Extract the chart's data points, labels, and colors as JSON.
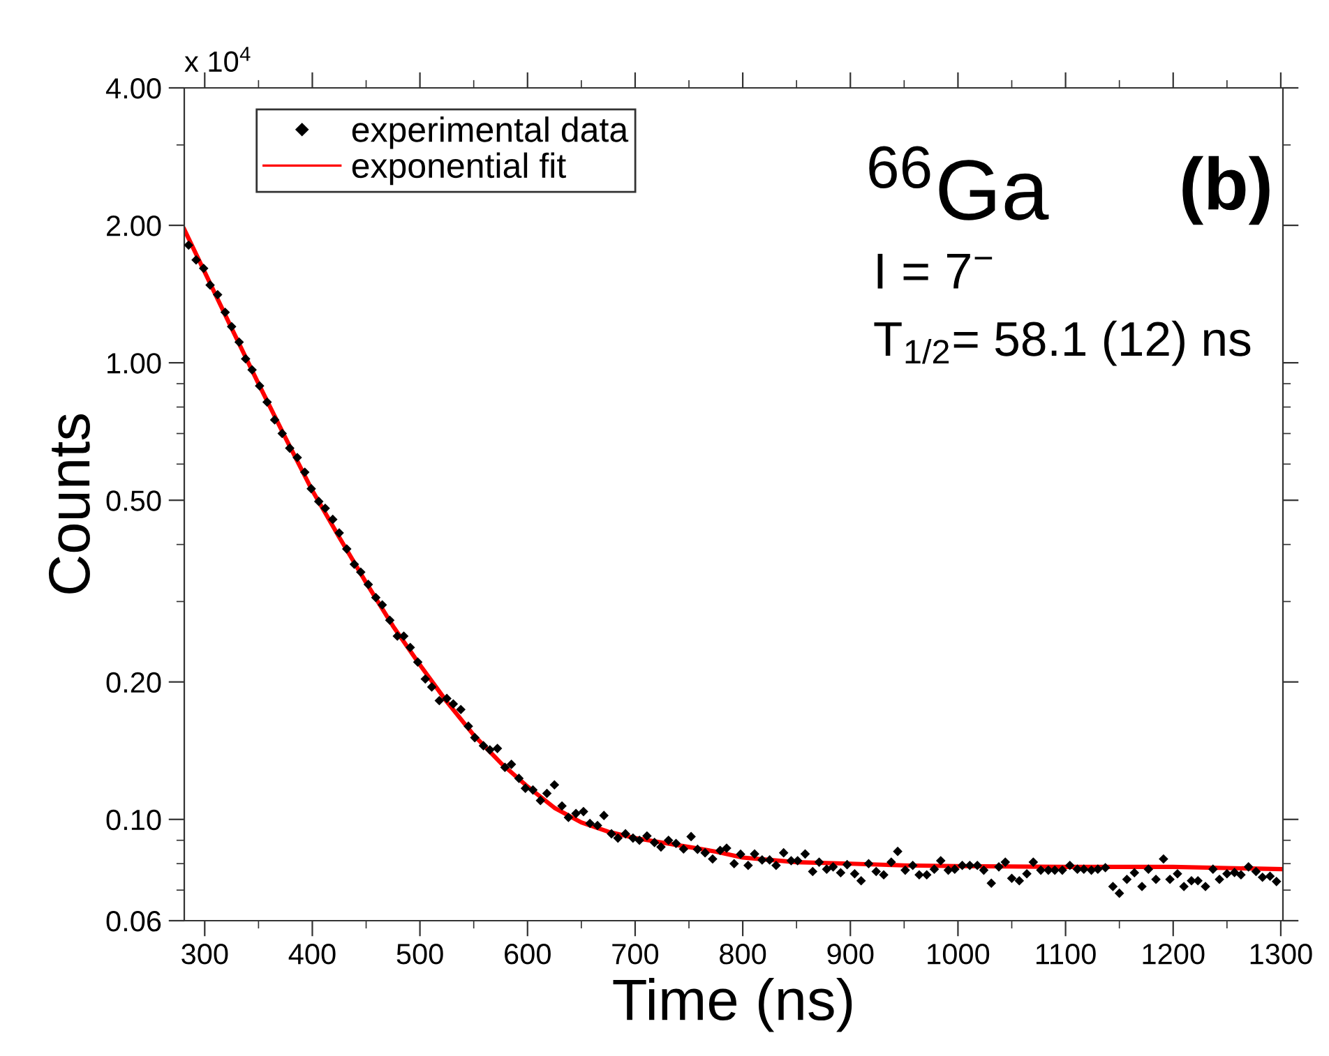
{
  "chart_data": {
    "type": "scatter",
    "xlabel": "Time (ns)",
    "ylabel": "Counts",
    "annotations": [
      "x 10$^{4}$",
      "$^{66}$Ga",
      "(b)",
      "I = 7$^{−}$",
      "T$_{1/2}$= 58.1 (12) ns"
    ],
    "log": "y",
    "xlim": [
      281,
      1302
    ],
    "ylim": [
      0.06,
      4.0
    ],
    "xticks": [
      300,
      {
        "value": 350,
        "label": null
      },
      400,
      {
        "value": 450,
        "label": null
      },
      500,
      {
        "value": 550,
        "label": null
      },
      600,
      {
        "value": 650,
        "label": null
      },
      700,
      {
        "value": 750,
        "label": null
      },
      800,
      {
        "value": 850,
        "label": null
      },
      900,
      {
        "value": 950,
        "label": null
      },
      1000,
      {
        "value": 1050,
        "label": null
      },
      1100,
      {
        "value": 1150,
        "label": null
      },
      1200,
      {
        "value": 1250,
        "label": null
      },
      1300
    ],
    "yticks": [
      {
        "value": 0.06,
        "label": "0.06"
      },
      {
        "value": 0.07,
        "label": null
      },
      {
        "value": 0.08,
        "label": null
      },
      {
        "value": 0.09,
        "label": null
      },
      {
        "value": 0.1,
        "label": "0.10"
      },
      {
        "value": 0.2,
        "label": "0.20"
      },
      {
        "value": 0.3,
        "label": null
      },
      {
        "value": 0.4,
        "label": null
      },
      {
        "value": 0.5,
        "label": "0.50"
      },
      {
        "value": 0.6,
        "label": null
      },
      {
        "value": 0.7,
        "label": null
      },
      {
        "value": 0.8,
        "label": null
      },
      {
        "value": 0.9,
        "label": null
      },
      {
        "value": 1.0,
        "label": "1.00"
      },
      {
        "value": 2.0,
        "label": "2.00"
      },
      {
        "value": 3.0,
        "label": null
      },
      {
        "value": 4.0,
        "label": "4.00"
      }
    ],
    "grid": false,
    "legend": "top left",
    "series": [
      {
        "name": "experimental data",
        "color": "#000000",
        "marker": "diamond",
        "x": [
          285,
          292,
          299,
          305,
          312,
          319,
          325,
          332,
          338,
          344,
          351,
          358,
          365,
          372,
          379,
          386,
          393,
          399,
          406,
          412,
          419,
          425,
          432,
          439,
          445,
          452,
          459,
          465,
          472,
          479,
          485,
          491,
          498,
          505,
          511,
          518,
          525,
          531,
          538,
          545,
          551,
          559,
          565,
          572,
          579,
          585,
          592,
          598,
          605,
          612,
          618,
          625,
          632,
          638,
          645,
          652,
          658,
          665,
          671,
          678,
          684,
          691,
          698,
          704,
          711,
          718,
          724,
          731,
          738,
          745,
          752,
          758,
          765,
          772,
          779,
          785,
          792,
          798,
          805,
          811,
          818,
          825,
          831,
          838,
          845,
          851,
          858,
          865,
          871,
          878,
          884,
          891,
          897,
          904,
          910,
          917,
          924,
          931,
          938,
          944,
          951,
          958,
          964,
          971,
          978,
          984,
          991,
          997,
          1004,
          1011,
          1018,
          1024,
          1031,
          1038,
          1044,
          1050,
          1057,
          1064,
          1070,
          1077,
          1084,
          1090,
          1097,
          1104,
          1111,
          1117,
          1124,
          1130,
          1137,
          1144,
          1150,
          1157,
          1164,
          1171,
          1177,
          1184,
          1191,
          1197,
          1204,
          1210,
          1217,
          1223,
          1230,
          1237,
          1243,
          1250,
          1257,
          1263,
          1270,
          1277,
          1283,
          1290,
          1296
        ],
        "values": [
          1.81,
          1.68,
          1.61,
          1.48,
          1.41,
          1.29,
          1.2,
          1.11,
          1.02,
          0.965,
          0.89,
          0.82,
          0.75,
          0.7,
          0.65,
          0.62,
          0.576,
          0.53,
          0.497,
          0.48,
          0.454,
          0.424,
          0.391,
          0.362,
          0.348,
          0.327,
          0.306,
          0.295,
          0.273,
          0.252,
          0.252,
          0.238,
          0.221,
          0.203,
          0.195,
          0.182,
          0.184,
          0.179,
          0.174,
          0.16,
          0.151,
          0.145,
          0.142,
          0.143,
          0.13,
          0.132,
          0.123,
          0.117,
          0.116,
          0.11,
          0.114,
          0.119,
          0.107,
          0.101,
          0.103,
          0.104,
          0.098,
          0.097,
          0.102,
          0.093,
          0.091,
          0.093,
          0.091,
          0.09,
          0.092,
          0.089,
          0.087,
          0.09,
          0.0886,
          0.0861,
          0.0917,
          0.086,
          0.0845,
          0.0819,
          0.0855,
          0.0865,
          0.08,
          0.0839,
          0.0793,
          0.084,
          0.0815,
          0.0815,
          0.0793,
          0.0845,
          0.0812,
          0.0812,
          0.084,
          0.0769,
          0.0806,
          0.0778,
          0.0787,
          0.0764,
          0.0796,
          0.076,
          0.0734,
          0.08,
          0.0769,
          0.0756,
          0.0806,
          0.0851,
          0.0774,
          0.0793,
          0.0756,
          0.0756,
          0.0778,
          0.0812,
          0.0774,
          0.0778,
          0.0793,
          0.0793,
          0.0793,
          0.0774,
          0.0725,
          0.0787,
          0.0806,
          0.0743,
          0.0734,
          0.076,
          0.0806,
          0.0774,
          0.0774,
          0.0774,
          0.0774,
          0.0793,
          0.0778,
          0.0778,
          0.0774,
          0.0778,
          0.0784,
          0.0713,
          0.0689,
          0.0739,
          0.0764,
          0.0713,
          0.0778,
          0.0739,
          0.0819,
          0.0739,
          0.076,
          0.0713,
          0.0734,
          0.0734,
          0.0713,
          0.0778,
          0.0739,
          0.076,
          0.0765,
          0.0756,
          0.0787,
          0.0769,
          0.0747,
          0.0751,
          0.0731
        ]
      },
      {
        "name": "exponential fit",
        "type": "line",
        "color": "#ff0000",
        "marker": "none",
        "line_style": "solid",
        "x": [
          281,
          300,
          325,
          350,
          375,
          400,
          425,
          450,
          475,
          500,
          525,
          550,
          575,
          600,
          625,
          650,
          675,
          700,
          725,
          750,
          775,
          800,
          850,
          900,
          950,
          1000,
          1100,
          1200,
          1302
        ],
        "values": [
          1.96,
          1.58,
          1.19,
          0.9,
          0.685,
          0.525,
          0.415,
          0.33,
          0.265,
          0.218,
          0.181,
          0.153,
          0.133,
          0.118,
          0.106,
          0.0985,
          0.094,
          0.091,
          0.089,
          0.087,
          0.085,
          0.0825,
          0.0806,
          0.08,
          0.0793,
          0.079,
          0.0787,
          0.0787,
          0.0778
        ]
      }
    ]
  }
}
